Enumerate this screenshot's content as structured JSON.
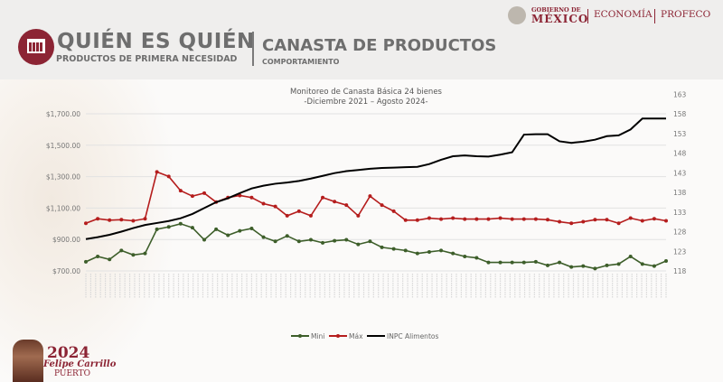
{
  "header": {
    "brand_title": "QUIÉN ES QUIÉN",
    "brand_subtitle": "PRODUCTOS DE PRIMERA NECESIDAD",
    "section_title": "CANASTA DE PRODUCTOS",
    "section_subtitle": "COMPORTAMIENTO",
    "gov_top": "GOBIERNO DE",
    "gov_main": "MÉXICO",
    "economia": "ECONOMÍA",
    "profeco": "PROFECO"
  },
  "footer_logo": {
    "year": "2024",
    "name": "Felipe Carrillo",
    "place": "PUERTO"
  },
  "colors": {
    "brand": "#8c2434",
    "min": "#3d5e2a",
    "max": "#b51d1d",
    "inpc": "#000000"
  },
  "chart_data": {
    "type": "line",
    "title": "Monitoreo de Canasta Básica 24 bienes",
    "subtitle": "-Diciembre 2021 – Agosto 2024-",
    "left_axis": {
      "ticks": [
        "$700.00",
        "$900.00",
        "$1,100.00",
        "$1,300.00",
        "$1,500.00",
        "$1,700.00"
      ],
      "range": [
        700,
        1700
      ]
    },
    "right_axis": {
      "ticks": [
        "118",
        "123",
        "128",
        "133",
        "138",
        "143",
        "148",
        "153",
        "158",
        "163"
      ],
      "range": [
        118,
        163
      ]
    },
    "grid": true,
    "legend_position": "bottom",
    "series": [
      {
        "name": "Mini",
        "axis": "left",
        "markers": true,
        "values": [
          758,
          792,
          773,
          830,
          802,
          811,
          965,
          980,
          1000,
          975,
          898,
          965,
          927,
          955,
          970,
          915,
          888,
          923,
          888,
          898,
          879,
          892,
          898,
          869,
          888,
          850,
          840,
          830,
          811,
          821,
          830,
          811,
          792,
          783,
          754,
          754,
          754,
          754,
          758,
          735,
          754,
          725,
          731,
          715,
          735,
          744,
          792,
          744,
          731,
          763
        ]
      },
      {
        "name": "Máx",
        "axis": "left",
        "markers": true,
        "values": [
          1003,
          1032,
          1023,
          1026,
          1019,
          1032,
          1330,
          1301,
          1211,
          1176,
          1195,
          1138,
          1167,
          1180,
          1167,
          1128,
          1110,
          1051,
          1080,
          1051,
          1167,
          1141,
          1119,
          1051,
          1176,
          1119,
          1080,
          1023,
          1023,
          1036,
          1030,
          1036,
          1030,
          1030,
          1030,
          1036,
          1030,
          1030,
          1030,
          1026,
          1013,
          1003,
          1013,
          1026,
          1026,
          1003,
          1036,
          1019,
          1032,
          1019
        ]
      },
      {
        "name": "INPC Alimentos",
        "axis": "right",
        "markers": false,
        "values": [
          126.1,
          126.6,
          127.2,
          128.0,
          128.9,
          129.7,
          130.2,
          130.7,
          131.4,
          132.5,
          134.0,
          135.5,
          136.5,
          137.8,
          139.0,
          139.7,
          140.2,
          140.5,
          140.9,
          141.5,
          142.2,
          142.9,
          143.4,
          143.7,
          144.0,
          144.2,
          144.3,
          144.4,
          144.5,
          145.2,
          146.3,
          147.2,
          147.4,
          147.2,
          147.1,
          147.6,
          148.2,
          152.7,
          152.8,
          152.8,
          151.0,
          150.6,
          150.9,
          151.4,
          152.3,
          152.5,
          154.0,
          156.8,
          156.8,
          156.8
        ]
      }
    ]
  }
}
